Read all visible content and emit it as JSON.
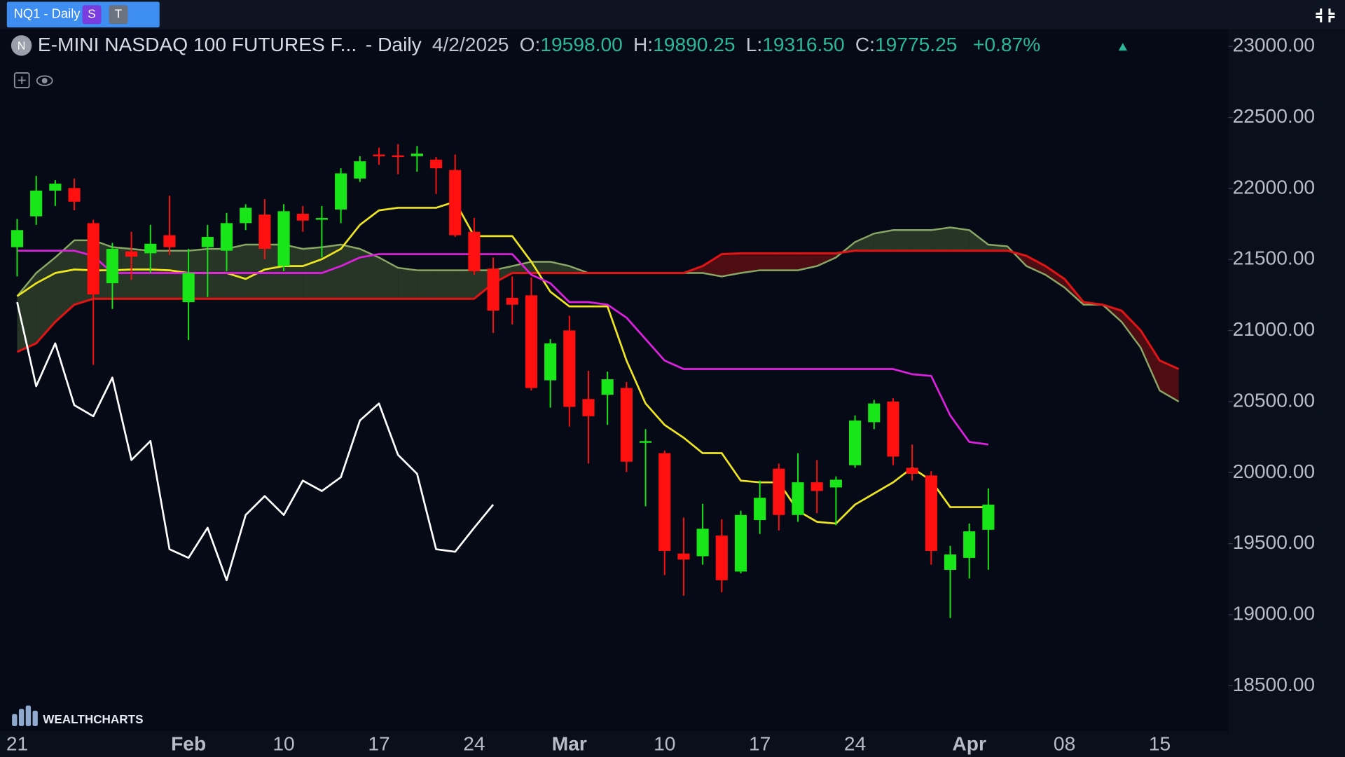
{
  "toolbar": {
    "tab": "NQ1 - Daily",
    "badges": [
      "S",
      "T"
    ]
  },
  "chart_data": {
    "type": "candlestick",
    "symbol_badge": "N",
    "title": "E-MINI NASDAQ 100 FUTURES F...",
    "interval": "- Daily",
    "date": "4/2/2025",
    "ohlc_labels": [
      "O:",
      "H:",
      "L:",
      "C:"
    ],
    "ohlc_values": [
      "19598.00",
      "19890.25",
      "19316.50",
      "19775.25"
    ],
    "change": "+0.87%",
    "watermark": "WEALTHCHARTS",
    "up_color": "#19e619",
    "down_color": "#ff1010",
    "categories": [
      "21",
      null,
      null,
      null,
      null,
      null,
      null,
      null,
      null,
      "Feb",
      null,
      null,
      null,
      null,
      "10",
      null,
      null,
      null,
      null,
      "17",
      null,
      null,
      null,
      null,
      "24",
      null,
      null,
      null,
      null,
      "Mar",
      null,
      null,
      null,
      null,
      "10",
      null,
      null,
      null,
      null,
      "17",
      null,
      null,
      null,
      null,
      "24",
      null,
      null,
      null,
      null,
      null,
      "Apr",
      null,
      null,
      null,
      null,
      "08",
      null,
      null,
      null,
      null,
      "15",
      null
    ],
    "ohlc": {
      "open": [
        21587,
        21804,
        21985,
        22003,
        21756,
        21333,
        21557,
        21544,
        21671,
        21200,
        21587,
        21562,
        21756,
        21816,
        21454,
        21822,
        21780,
        21852,
        22070,
        22239,
        22233,
        22227,
        22203,
        22130,
        21695,
        21436,
        21230,
        21248,
        20650,
        21001,
        20518,
        20548,
        20596,
        20210,
        20137,
        19431,
        19412,
        19557,
        19304,
        19666,
        20028,
        19702,
        19932,
        19896,
        20052,
        20355,
        20500,
        20034,
        19980,
        19316,
        19400,
        19598,
        null,
        null,
        null,
        null,
        null,
        null,
        null,
        null,
        null,
        null
      ],
      "high": [
        21786,
        22088,
        22058,
        22070,
        21780,
        21617,
        21695,
        21744,
        21949,
        21575,
        21744,
        21828,
        21889,
        21925,
        21889,
        21877,
        21877,
        22142,
        22227,
        22287,
        22312,
        22299,
        22221,
        22239,
        21792,
        21514,
        21381,
        21375,
        20940,
        21104,
        20717,
        20711,
        20638,
        20306,
        20155,
        19684,
        19781,
        19672,
        19732,
        19944,
        20064,
        20137,
        20089,
        19974,
        20403,
        20512,
        20524,
        20198,
        20010,
        19485,
        19642,
        19890.25,
        null,
        null,
        null,
        null,
        null,
        null,
        null,
        null,
        null,
        null
      ],
      "low": [
        21381,
        21744,
        21877,
        21846,
        20759,
        21152,
        21357,
        21405,
        21532,
        20934,
        21236,
        21418,
        21707,
        21502,
        21418,
        21695,
        21514,
        21756,
        22046,
        22167,
        22100,
        22118,
        21961,
        21659,
        21393,
        20983,
        21043,
        20578,
        20457,
        20324,
        20064,
        20336,
        20004,
        19763,
        19279,
        19134,
        19352,
        19158,
        19291,
        19569,
        19593,
        19654,
        19714,
        19630,
        20034,
        20306,
        20052,
        19944,
        19352,
        18977,
        19255,
        19316.5,
        null,
        null,
        null,
        null,
        null,
        null,
        null,
        null,
        null,
        null
      ],
      "close": [
        21707,
        21985,
        22034,
        21907,
        21254,
        21575,
        21520,
        21611,
        21587,
        21405,
        21659,
        21756,
        21864,
        21575,
        21840,
        21774,
        21792,
        22106,
        22191,
        22227,
        22227,
        22245,
        22142,
        21671,
        21418,
        21140,
        21182,
        20596,
        20910,
        20463,
        20397,
        20657,
        20077,
        20222,
        19449,
        19388,
        19605,
        19243,
        19702,
        19823,
        19702,
        19932,
        19871,
        19950,
        20367,
        20487,
        20113,
        19992,
        19449,
        19424,
        19587,
        19775.25,
        null,
        null,
        null,
        null,
        null,
        null,
        null,
        null,
        null,
        null
      ]
    },
    "overlays": [
      {
        "color": "#ffffff",
        "values": [
          21200,
          20608,
          20910,
          20475,
          20397,
          20669,
          20089,
          20222,
          19461,
          19400,
          19612,
          19243,
          19702,
          19835,
          19702,
          19944,
          19871,
          19968,
          20367,
          20487,
          20125,
          19992,
          19461,
          19443,
          19612,
          19775,
          null,
          null,
          null,
          null,
          null,
          null,
          null,
          null,
          null,
          null,
          null,
          null,
          null,
          null,
          null,
          null,
          null,
          null,
          null,
          null,
          null,
          null,
          null,
          null,
          null,
          null,
          null,
          null,
          null,
          null,
          null,
          null,
          null,
          null,
          null,
          null
        ]
      },
      {
        "color": "#f0e61e",
        "values": [
          21242,
          21333,
          21405,
          21430,
          21424,
          21424,
          21430,
          21430,
          21424,
          21405,
          21405,
          21405,
          21363,
          21430,
          21454,
          21454,
          21502,
          21575,
          21744,
          21846,
          21864,
          21864,
          21864,
          21907,
          21665,
          21665,
          21665,
          21484,
          21273,
          21170,
          21170,
          21170,
          20789,
          20487,
          20336,
          20246,
          20137,
          20137,
          19944,
          19932,
          19932,
          19732,
          19654,
          19642,
          19775,
          19853,
          19932,
          20034,
          19944,
          19757,
          19757,
          19757,
          null,
          null,
          null,
          null,
          null,
          null,
          null,
          null,
          null,
          null
        ]
      },
      {
        "color": "#e020e0",
        "values": [
          21562,
          21562,
          21562,
          21562,
          21526,
          21405,
          21405,
          21405,
          21405,
          21405,
          21405,
          21405,
          21405,
          21405,
          21405,
          21405,
          21405,
          21454,
          21514,
          21538,
          21538,
          21538,
          21538,
          21538,
          21538,
          21538,
          21538,
          21393,
          21333,
          21200,
          21200,
          21182,
          21091,
          20940,
          20789,
          20729,
          20729,
          20729,
          20729,
          20729,
          20729,
          20729,
          20729,
          20729,
          20729,
          20729,
          20729,
          20693,
          20681,
          20403,
          20216,
          20198,
          null,
          null,
          null,
          null,
          null,
          null,
          null,
          null,
          null,
          null
        ]
      }
    ],
    "cloud": {
      "span_a": {
        "color": "#8aa865",
        "values": [
          21242,
          21405,
          21514,
          21635,
          21635,
          21587,
          21575,
          21562,
          21562,
          21562,
          21575,
          21575,
          21605,
          21605,
          21605,
          21575,
          21587,
          21605,
          21575,
          21514,
          21442,
          21424,
          21424,
          21424,
          21424,
          21424,
          21454,
          21484,
          21484,
          21454,
          21405,
          21405,
          21405,
          21405,
          21405,
          21405,
          21405,
          21381,
          21405,
          21424,
          21424,
          21424,
          21454,
          21514,
          21623,
          21683,
          21707,
          21707,
          21707,
          21726,
          21707,
          21605,
          21593,
          21454,
          21393,
          21303,
          21182,
          21182,
          21061,
          20880,
          20578,
          20500
        ]
      },
      "span_b": {
        "color": "#e01414",
        "values": [
          20850,
          20910,
          21061,
          21182,
          21224,
          21224,
          21224,
          21224,
          21224,
          21224,
          21224,
          21224,
          21224,
          21224,
          21224,
          21224,
          21224,
          21224,
          21224,
          21224,
          21224,
          21224,
          21224,
          21224,
          21224,
          21333,
          21405,
          21405,
          21405,
          21405,
          21405,
          21405,
          21405,
          21405,
          21405,
          21405,
          21454,
          21538,
          21544,
          21544,
          21544,
          21544,
          21544,
          21544,
          21562,
          21562,
          21562,
          21562,
          21562,
          21562,
          21562,
          21562,
          21562,
          21526,
          21454,
          21363,
          21200,
          21182,
          21140,
          21001,
          20789,
          20729
        ]
      },
      "up_fill": "#4d6a3a",
      "down_fill": "#6e0e12"
    },
    "ylim": [
      18180,
      23115
    ],
    "yticks": [
      {
        "value": 23000,
        "label": "23000.00"
      },
      {
        "value": 22500,
        "label": "22500.00"
      },
      {
        "value": 22000,
        "label": "22000.00"
      },
      {
        "value": 21500,
        "label": "21500.00"
      },
      {
        "value": 21000,
        "label": "21000.00"
      },
      {
        "value": 20500,
        "label": "20500.00"
      },
      {
        "value": 20000,
        "label": "20000.00"
      },
      {
        "value": 19500,
        "label": "19500.00"
      },
      {
        "value": 19000,
        "label": "19000.00"
      },
      {
        "value": 18500,
        "label": "18500.00"
      }
    ]
  }
}
